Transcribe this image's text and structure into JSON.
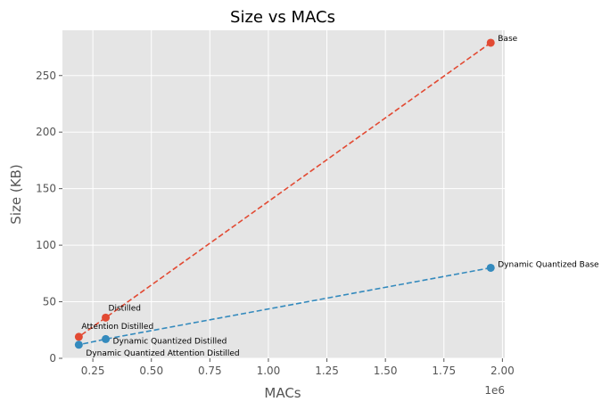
{
  "chart_data": {
    "type": "scatter",
    "title": "Size vs MACs",
    "xlabel": "MACs",
    "ylabel": "Size (KB)",
    "x_offset_label": "1e6",
    "x_scale_factor": 1000000,
    "xlim": [
      120000,
      2010000
    ],
    "ylim": [
      0,
      290
    ],
    "x_ticks": [
      250000,
      500000,
      750000,
      1000000,
      1250000,
      1500000,
      1750000,
      2000000
    ],
    "x_tick_labels": [
      "0.25",
      "0.50",
      "0.75",
      "1.00",
      "1.25",
      "1.50",
      "1.75",
      "2.00"
    ],
    "y_ticks": [
      0,
      50,
      100,
      150,
      200,
      250
    ],
    "y_tick_labels": [
      "0",
      "50",
      "100",
      "150",
      "200",
      "250"
    ],
    "grid": true,
    "series": [
      {
        "color": "#E24A33",
        "line_style": "dashed",
        "points": [
          {
            "x": 1950000,
            "y": 279,
            "label": "Base"
          },
          {
            "x": 305000,
            "y": 36,
            "label": "Distilled"
          },
          {
            "x": 190000,
            "y": 19,
            "label": "Attention Distilled"
          }
        ]
      },
      {
        "color": "#348ABD",
        "line_style": "dashed",
        "points": [
          {
            "x": 1950000,
            "y": 80,
            "label": "Dynamic Quantized Base"
          },
          {
            "x": 305000,
            "y": 17,
            "label": "Dynamic Quantized Distilled"
          },
          {
            "x": 190000,
            "y": 12,
            "label": "Dynamic Quantized Attention Distilled"
          }
        ]
      }
    ]
  }
}
